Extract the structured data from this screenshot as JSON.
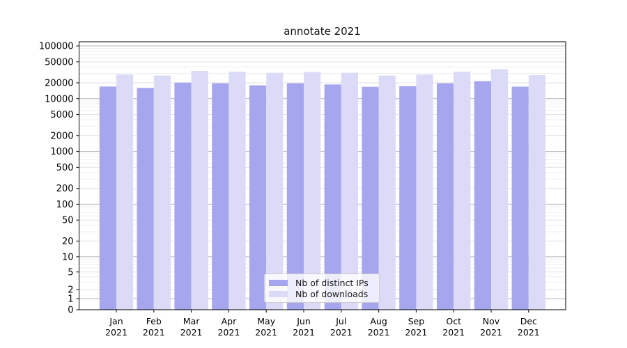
{
  "figure_title": "annotate 2021",
  "chart_data": {
    "type": "bar",
    "title": "annotate 2021",
    "categories": [
      "Jan",
      "Feb",
      "Mar",
      "Apr",
      "May",
      "Jun",
      "Jul",
      "Aug",
      "Sep",
      "Oct",
      "Nov",
      "Dec"
    ],
    "category_year": "2021",
    "series": [
      {
        "name": "Nb of distinct IPs",
        "color": "#a6a6ef",
        "values": [
          17000,
          16000,
          20200,
          19600,
          17900,
          19600,
          18600,
          16800,
          17300,
          19600,
          21500,
          16900
        ]
      },
      {
        "name": "Nb of downloads",
        "color": "#dbdbf8",
        "values": [
          28800,
          27400,
          33600,
          32600,
          31000,
          32000,
          31000,
          27400,
          28800,
          32600,
          36500,
          28000
        ]
      }
    ],
    "xlabel": "",
    "ylabel": "",
    "yscale": "symlog",
    "yticks": [
      0,
      1,
      2,
      5,
      10,
      20,
      50,
      100,
      200,
      500,
      1000,
      2000,
      5000,
      10000,
      20000,
      50000,
      100000
    ],
    "ylim": [
      0,
      100000
    ],
    "grid": "both",
    "legend_position": "lower center"
  }
}
